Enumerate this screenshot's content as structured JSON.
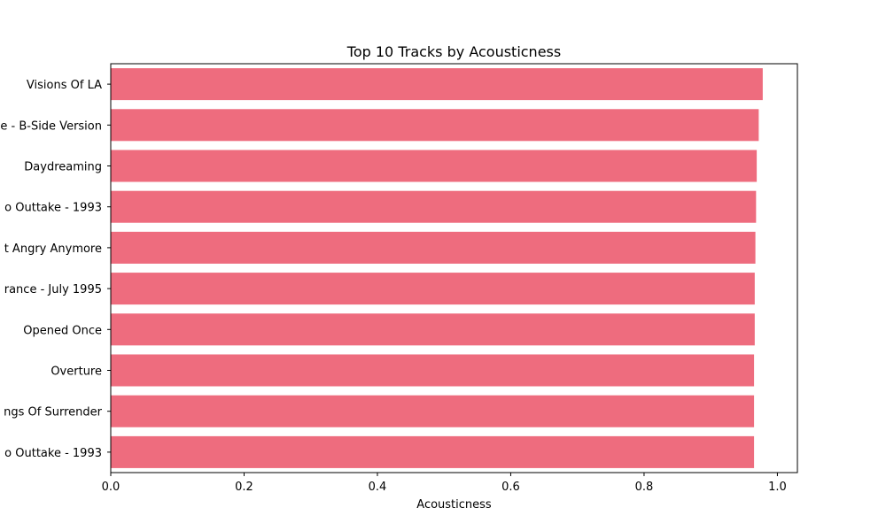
{
  "chart_data": {
    "type": "bar",
    "orientation": "horizontal",
    "title": "Top 10 Tracks by Acousticness",
    "xlabel": "Acousticness",
    "ylabel": "",
    "xlim": [
      0,
      1.03
    ],
    "xticks": [
      0.0,
      0.2,
      0.4,
      0.6,
      0.8,
      1.0
    ],
    "xtick_labels": [
      "0.0",
      "0.2",
      "0.4",
      "0.6",
      "0.8",
      "1.0"
    ],
    "categories": [
      "Visions Of LA",
      "e - B-Side Version",
      "Daydreaming",
      "o Outtake - 1993",
      "t Angry Anymore",
      "rance - July 1995",
      "Opened Once",
      "Overture",
      "ngs Of Surrender",
      "o Outtake - 1993"
    ],
    "values": [
      0.978,
      0.972,
      0.969,
      0.968,
      0.967,
      0.966,
      0.966,
      0.965,
      0.965,
      0.965
    ],
    "bar_color": "#ee6c7e",
    "grid": false,
    "legend": "none"
  }
}
